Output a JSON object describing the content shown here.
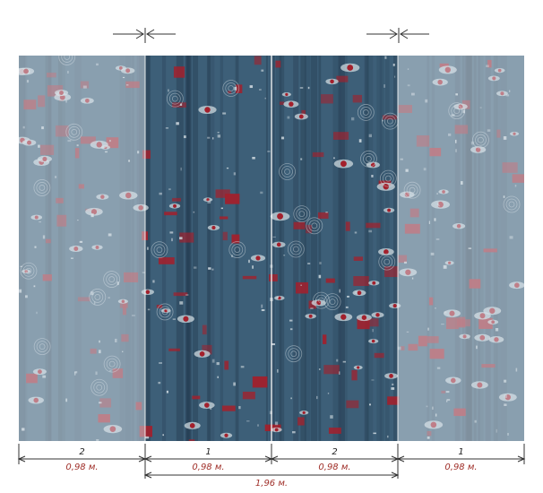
{
  "panels": [
    {
      "number": "2",
      "width": "0,98 м.",
      "tone": "faded"
    },
    {
      "number": "1",
      "width": "0,98 м.",
      "tone": "dark"
    },
    {
      "number": "2",
      "width": "0,98 м.",
      "tone": "dark"
    },
    {
      "number": "1",
      "width": "0,98 м.",
      "tone": "faded"
    }
  ],
  "total_width": "1,96 м.",
  "colors": {
    "base_blue": "#3d5f78",
    "deep_blue": "#22384c",
    "red": "#a3202c",
    "light": "#cfd9df",
    "faded_overlay": "#dde6ec",
    "label_red": "#a0302a",
    "line": "#333333"
  }
}
